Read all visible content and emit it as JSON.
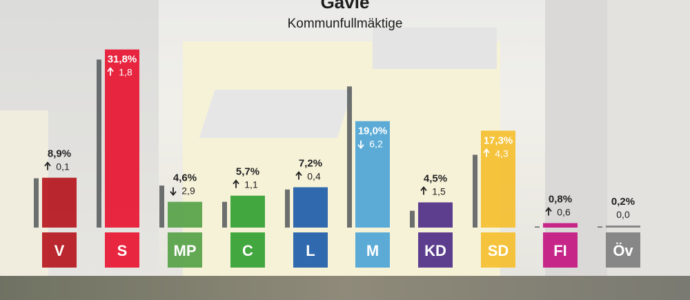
{
  "header": {
    "title": "Gävle",
    "subtitle": "Kommunfullmäktige"
  },
  "chart_data": {
    "type": "bar",
    "title": "Gävle",
    "subtitle": "Kommunfullmäktige",
    "categories": [
      "V",
      "S",
      "MP",
      "C",
      "L",
      "M",
      "KD",
      "SD",
      "FI",
      "Öv"
    ],
    "series": [
      {
        "values": [
          8.9,
          31.8,
          4.6,
          5.7,
          7.2,
          19.0,
          4.5,
          17.3,
          0.8,
          0.2
        ],
        "labels": [
          "8,9%",
          "31,8%",
          "4,6%",
          "5,7%",
          "7,2%",
          "19,0%",
          "4,5%",
          "17,3%",
          "0,8%",
          "0,2%"
        ]
      },
      {
        "values": [
          8.8,
          30.0,
          7.5,
          4.6,
          6.8,
          25.2,
          3.0,
          13.0,
          0.2,
          0.2
        ],
        "labels": []
      }
    ],
    "changes": [
      0.1,
      1.8,
      -2.9,
      1.1,
      0.4,
      -6.2,
      1.5,
      4.3,
      0.6,
      0.0
    ],
    "change_labels": [
      "0,1",
      "1,8",
      "2,9",
      "1,1",
      "0,4",
      "6,2",
      "1,5",
      "4,3",
      "0,6",
      "0,0"
    ],
    "change_direction": [
      "up",
      "up",
      "down",
      "up",
      "up",
      "down",
      "up",
      "up",
      "up",
      "none"
    ],
    "colors": [
      "#b5121b",
      "#e8112d",
      "#53a045",
      "#2f9e2f",
      "#1b5aa8",
      "#4aa3d6",
      "#4d2a86",
      "#f5be2b",
      "#c2127f",
      "#7d7d7d"
    ],
    "previous_color": "#53585a",
    "ylim": [
      0,
      33
    ]
  }
}
